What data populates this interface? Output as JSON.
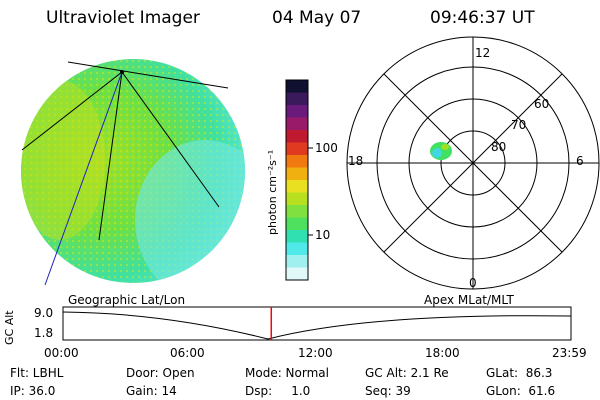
{
  "header": {
    "title": "Ultraviolet Imager",
    "date": "04 May 07",
    "time": "09:46:37 UT"
  },
  "colorbar": {
    "label": "photon cm⁻²s⁻¹",
    "ticks": [
      "100",
      "10"
    ],
    "colors": [
      "#101030",
      "#3a1a5a",
      "#6a1a7a",
      "#9a1a6a",
      "#c01a30",
      "#e03a20",
      "#f07a10",
      "#f0b010",
      "#e8e020",
      "#b8e020",
      "#80e040",
      "#50e060",
      "#30e0b0",
      "#50e8e8",
      "#a0f0f0",
      "#e0f8f8"
    ]
  },
  "polar_plot": {
    "mlt_labels": [
      "12",
      "18",
      "6",
      "0"
    ],
    "lat_labels": [
      "60",
      "70",
      "80"
    ]
  },
  "timeline": {
    "left_title": "Geographic Lat/Lon",
    "right_title": "Apex MLat/MLT",
    "y_axis_label": "GC Alt",
    "y_ticks": [
      "9.0",
      "1.8"
    ],
    "x_ticks": [
      "00:00",
      "06:00",
      "12:00",
      "18:00",
      "23:59"
    ],
    "marker_fraction": 0.41
  },
  "info_bar": {
    "flt": "Flt: LBHL",
    "ip": "IP: 36.0",
    "door": "Door: Open",
    "gain": "Gain: 14",
    "mode": "Mode: Normal",
    "dsp": "Dsp:     1.0",
    "gc_alt": "GC Alt: 2.1 Re",
    "seq": "Seq: 39",
    "glat": "GLat:  86.3",
    "glon": "GLon:  61.6"
  }
}
